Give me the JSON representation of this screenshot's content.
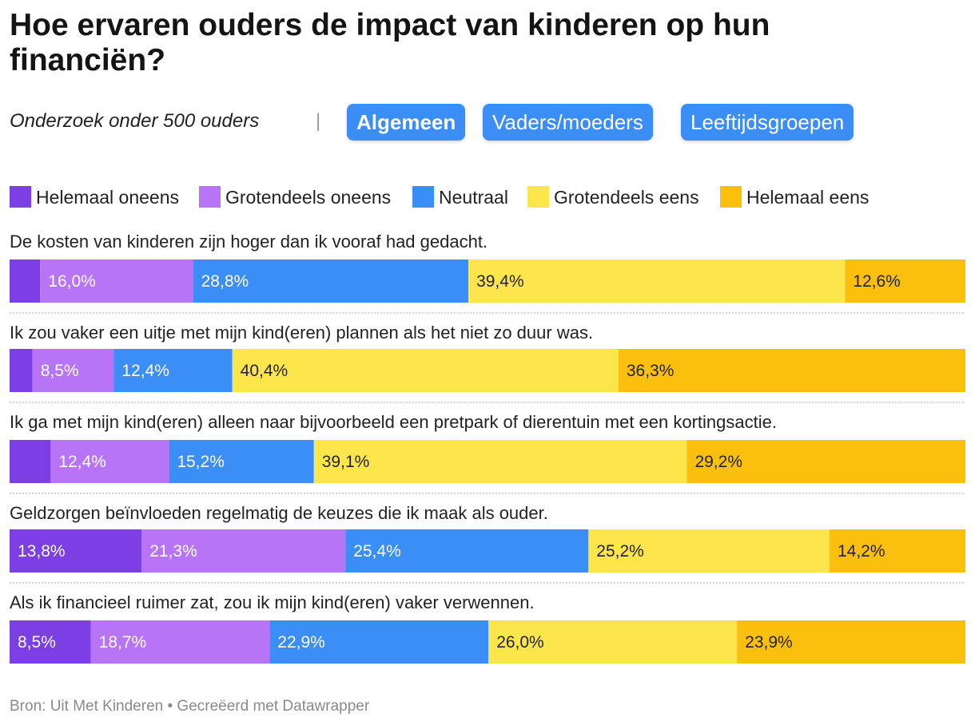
{
  "title": "Hoe ervaren ouders de impact van kinderen op hun financiën?",
  "subtitle": "Onderzoek onder 500 ouders",
  "divider": "|",
  "tabs": [
    {
      "label": "Algemeen",
      "active": true
    },
    {
      "label": "Vaders/moeders",
      "active": false
    },
    {
      "label": "Leeftijdsgroepen",
      "active": false
    }
  ],
  "legend": [
    {
      "label": "Helemaal oneens",
      "color": "#7b3fe4"
    },
    {
      "label": "Grotendeels oneens",
      "color": "#b774f7"
    },
    {
      "label": "Neutraal",
      "color": "#3a8ef6"
    },
    {
      "label": "Grotendeels eens",
      "color": "#fde54c"
    },
    {
      "label": "Helemaal eens",
      "color": "#fbbf0e"
    }
  ],
  "footer": "Bron: Uit Met Kinderen • Gecreëerd met Datawrapper",
  "chart_data": {
    "type": "bar",
    "orientation": "horizontal",
    "stacked": true,
    "unit": "%",
    "series": [
      "Helemaal oneens",
      "Grotendeels oneens",
      "Neutraal",
      "Grotendeels eens",
      "Helemaal eens"
    ],
    "rows": [
      {
        "question": "De kosten van kinderen zijn hoger dan ik vooraf had gedacht.",
        "values": [
          3.2,
          16.0,
          28.8,
          39.4,
          12.6
        ],
        "labels": [
          "",
          "16,0%",
          "28,8%",
          "39,4%",
          "12,6%"
        ]
      },
      {
        "question": "Ik zou vaker een uitje met mijn kind(eren) plannen als het niet zo duur was.",
        "values": [
          2.4,
          8.5,
          12.4,
          40.4,
          36.3
        ],
        "labels": [
          "",
          "8,5%",
          "12,4%",
          "40,4%",
          "36,3%"
        ]
      },
      {
        "question": "Ik ga met mijn kind(eren) alleen naar bijvoorbeeld een pretpark of dierentuin met een kortingsactie.",
        "values": [
          4.3,
          12.4,
          15.2,
          39.1,
          29.2
        ],
        "labels": [
          "",
          "12,4%",
          "15,2%",
          "39,1%",
          "29,2%"
        ]
      },
      {
        "question": "Geldzorgen beïnvloeden regelmatig de keuzes die ik maak als ouder.",
        "values": [
          13.8,
          21.3,
          25.4,
          25.2,
          14.2
        ],
        "labels": [
          "13,8%",
          "21,3%",
          "25,4%",
          "25,2%",
          "14,2%"
        ]
      },
      {
        "question": "Als ik financieel ruimer zat, zou ik mijn kind(eren) vaker verwennen.",
        "values": [
          8.5,
          18.7,
          22.9,
          26.0,
          23.9
        ],
        "labels": [
          "8,5%",
          "18,7%",
          "22,9%",
          "26,0%",
          "23,9%"
        ]
      }
    ]
  }
}
